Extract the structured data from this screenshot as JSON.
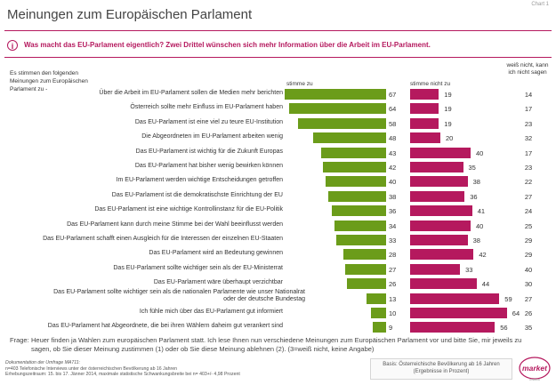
{
  "header": {
    "chart_label": "Chart 1",
    "title": "Meinungen zum Europäischen Parlament",
    "question_icon": "info-icon",
    "question": "Was macht das EU-Parlament eigentlich? Zwei Drittel wünschen sich mehr Information über die Arbeit im EU-Parlament."
  },
  "intro": "Es stimmen den folgenden Meinungen zum Europäischen Parlament  zu -",
  "colors": {
    "agree": "#6b9c1a",
    "disagree": "#b5195e",
    "accent": "#b5195e"
  },
  "chart_data": {
    "type": "bar",
    "orientation": "horizontal",
    "categories": [
      "Über die Arbeit im EU-Parlament sollen die Medien mehr berichten",
      "Österreich sollte mehr Einfluss im EU-Parlament haben",
      "Das EU-Parlament ist eine viel zu teure EU-Institution",
      "Die Abgeordneten im EU-Parlament arbeiten wenig",
      "Das EU-Parlament ist wichtig für die Zukunft Europas",
      "Das EU-Parlament hat bisher wenig bewirken können",
      "Im EU-Parlament werden wichtige Entscheidungen getroffen",
      "Das EU-Parlament ist die demokratischste Einrichtung der EU",
      "Das EU-Parlament ist eine wichtige Kontrollinstanz für die EU-Politik",
      "Das EU-Parlament kann durch meine Stimme bei der Wahl beeinflusst werden",
      "Das EU-Parlament schafft einen Ausgleich für die Interessen der einzelnen  EU-Staaten",
      "Das EU-Parlament wird an Bedeutung gewinnen",
      "Das EU-Parlament sollte wichtiger sein als der EU-Ministerrat",
      "Das EU-Parlament wäre überhaupt verzichtbar",
      "Das EU-Parlament sollte wichtiger sein als die nationalen Parlamente wie unser Nationalrat oder der deutsche Bundestag",
      "Ich fühle mich über das EU-Parlament gut informiert",
      "Das EU-Parlament hat Abgeordnete, die bei ihren Wählern daheim gut  verankert sind"
    ],
    "series": [
      {
        "name": "stimme zu",
        "values": [
          67,
          64,
          58,
          48,
          43,
          42,
          40,
          38,
          36,
          34,
          33,
          28,
          27,
          26,
          13,
          10,
          9
        ]
      },
      {
        "name": "stimme nicht zu",
        "values": [
          19,
          19,
          19,
          20,
          40,
          35,
          38,
          36,
          41,
          40,
          38,
          42,
          33,
          44,
          59,
          64,
          56
        ]
      },
      {
        "name": "weiß nicht, kann ich nicht sagen",
        "values": [
          14,
          17,
          23,
          32,
          17,
          23,
          22,
          27,
          24,
          25,
          29,
          29,
          40,
          30,
          27,
          26,
          35
        ]
      }
    ],
    "xlim": [
      0,
      100
    ]
  },
  "footer": {
    "frage_label": "Frage:",
    "frage_text": "Heuer finden ja Wahlen zum europäischen Parlament statt. Ich lese Ihnen nun verschiedene Meinungen zum Europäischen Parlament vor und bitte Sie, mir jeweils zu sagen, ob Sie dieser Meinung zustimmen (1) oder ob Sie diese Meinung ablehnen (2). (3=weiß nicht, keine Angabe)",
    "doc_title": "Dokumentation der Umfrage MA711:",
    "doc_line1": "n=403 Telefonische Interviews unter der österreichischen Bevölkerung ab 16 Jahren",
    "doc_line2": "Erhebungszeitraum: 15. bis 17. Jänner 2014, maximale statistische Schwankungsbreite  bei n= 403+/- 4,98 Prozent",
    "basis_line1": "Basis: Österreichische Bevölkerung ab 16 Jahren",
    "basis_line2": "(Ergebnisse in Prozent)",
    "logo_text": "market",
    "logo_sub": "institut"
  }
}
